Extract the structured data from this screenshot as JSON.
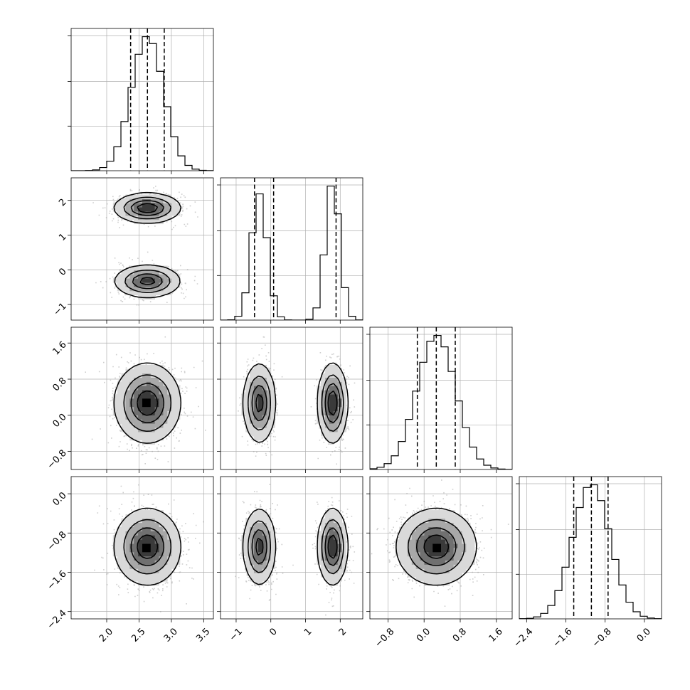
{
  "chart_data": {
    "type": "corner",
    "grid": true,
    "panel_line_color": "#000000",
    "density_shades": [
      "#f5f5f5",
      "#d9d9d9",
      "#a8a8a8",
      "#707070",
      "#3a3a3a",
      "#000000"
    ],
    "scatter_color": "#9e9e9e",
    "params": [
      {
        "range": [
          1.45,
          3.65
        ],
        "ticks": [
          2.0,
          2.5,
          3.0,
          3.5
        ],
        "tick_labels": [
          "2.0",
          "2.5",
          "3.0",
          "3.5"
        ],
        "components": [
          {
            "mean": 2.63,
            "sd": 0.25,
            "weight": 1.0
          }
        ],
        "quantiles": [
          2.37,
          2.63,
          2.89
        ],
        "hist_bins": 20
      },
      {
        "range": [
          -1.45,
          2.65
        ],
        "ticks": [
          -1,
          0,
          1,
          2
        ],
        "tick_labels": [
          "−1",
          "0",
          "1",
          "2"
        ],
        "components": [
          {
            "mean": -0.33,
            "sd": 0.23,
            "weight": 0.5
          },
          {
            "mean": 1.78,
            "sd": 0.21,
            "weight": 0.5
          }
        ],
        "quantiles": [
          -0.47,
          0.08,
          1.88
        ],
        "hist_bins": 20
      },
      {
        "range": [
          -1.2,
          1.95
        ],
        "ticks": [
          -0.8,
          0.0,
          0.8,
          1.6
        ],
        "tick_labels": [
          "−0.8",
          "0.0",
          "0.8",
          "1.6"
        ],
        "components": [
          {
            "mean": 0.27,
            "sd": 0.43,
            "weight": 1.0
          }
        ],
        "quantiles": [
          -0.15,
          0.27,
          0.69
        ],
        "hist_bins": 20
      },
      {
        "range": [
          -2.55,
          0.35
        ],
        "ticks": [
          -2.4,
          -1.6,
          -0.8,
          0.0
        ],
        "tick_labels": [
          "−2.4",
          "−1.6",
          "−0.8",
          "0.0"
        ],
        "components": [
          {
            "mean": -1.08,
            "sd": 0.38,
            "weight": 1.0
          }
        ],
        "quantiles": [
          -1.44,
          -1.08,
          -0.74
        ],
        "hist_bins": 20
      }
    ]
  }
}
